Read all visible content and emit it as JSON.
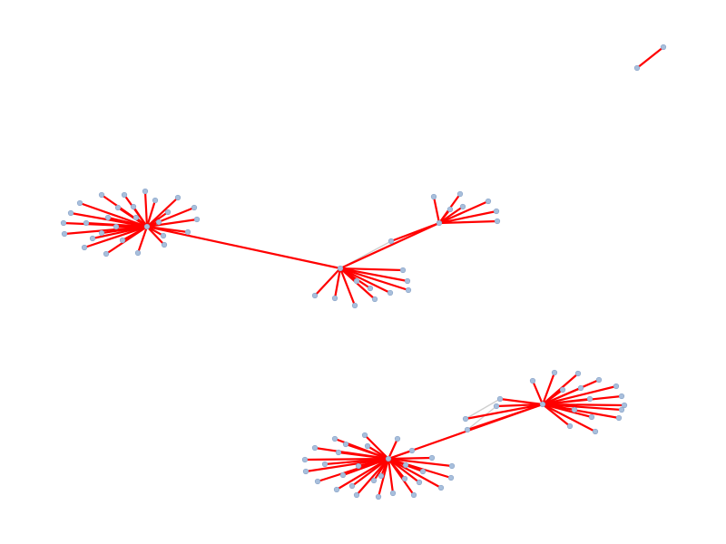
{
  "colors": {
    "background": "#ffffff",
    "highlight_edge": "#ff0000",
    "secondary_edge": "#cfcfcf",
    "node": "#a8bfdc"
  },
  "graph": {
    "components": 3,
    "hubs": [
      {
        "id": "A",
        "leaves": 28
      },
      {
        "id": "B",
        "leaves": 10
      },
      {
        "id": "C",
        "leaves": 8
      },
      {
        "id": "D",
        "leaves": 30
      },
      {
        "id": "E",
        "leaves": 20
      }
    ],
    "hub_links": [
      [
        "A",
        "B",
        "highlight"
      ],
      [
        "B",
        "C",
        "highlight"
      ],
      [
        "D",
        "E",
        "highlight"
      ]
    ],
    "isolated_pairs": 1
  }
}
